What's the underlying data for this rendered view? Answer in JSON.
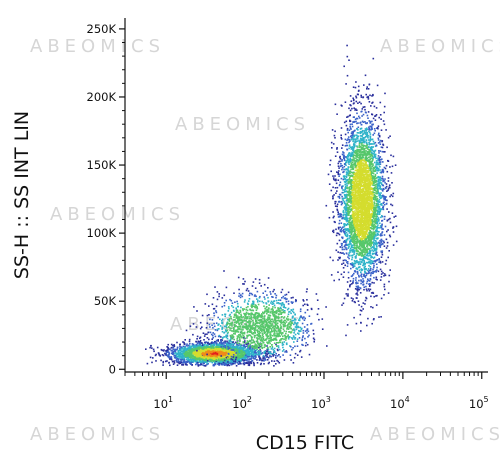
{
  "chart_data": {
    "type": "scatter",
    "subtype": "flow-cytometry density dot plot",
    "xlabel": "CD15 FITC",
    "ylabel": "SS-H :: SS INT LIN",
    "x_scale": "log",
    "x_ticks": [
      {
        "value": 10,
        "base": "10",
        "exp": "1"
      },
      {
        "value": 100,
        "base": "10",
        "exp": "2"
      },
      {
        "value": 1000,
        "base": "10",
        "exp": "3"
      },
      {
        "value": 10000,
        "base": "10",
        "exp": "4"
      },
      {
        "value": 100000,
        "base": "10",
        "exp": "5"
      }
    ],
    "xlim": [
      3,
      120000
    ],
    "y_scale": "linear",
    "y_ticks": [
      {
        "value": 0,
        "label": "0"
      },
      {
        "value": 50000,
        "label": "50K"
      },
      {
        "value": 100000,
        "label": "100K"
      },
      {
        "value": 150000,
        "label": "150K"
      },
      {
        "value": 200000,
        "label": "200K"
      },
      {
        "value": 250000,
        "label": "250K"
      }
    ],
    "ylim": [
      -2000,
      258000
    ],
    "density_colormap": [
      "#2a2f9c",
      "#3a62c9",
      "#2fb3c9",
      "#56c76b",
      "#d4dd2e",
      "#f08a1a",
      "#e3201d"
    ],
    "populations": [
      {
        "x_center": 40,
        "y_center": 12000,
        "x_spread_log": 0.28,
        "y_spread": 4000,
        "count": 2800
      },
      {
        "x_center": 150,
        "y_center": 32000,
        "x_spread_log": 0.3,
        "y_spread": 12000,
        "count": 1500
      },
      {
        "x_center": 3000,
        "y_center": 125000,
        "x_spread_log": 0.14,
        "y_spread": 30000,
        "count": 4200
      }
    ]
  },
  "watermark": "ABEOMICS"
}
